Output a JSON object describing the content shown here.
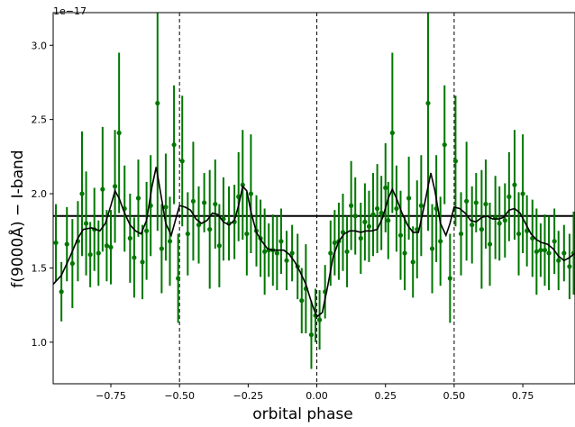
{
  "chart_data": {
    "type": "scatter",
    "title": "",
    "xlabel": "orbital phase",
    "ylabel": "f(9000Å) − I-band",
    "y_offset_label": "1e−17",
    "xlim": [
      -0.96,
      0.94
    ],
    "ylim": [
      0.72,
      3.22
    ],
    "x_ticks": [
      -0.75,
      -0.5,
      -0.25,
      0.0,
      0.25,
      0.5,
      0.75
    ],
    "x_tick_labels": [
      "−0.75",
      "−0.50",
      "−0.25",
      "0.00",
      "0.25",
      "0.50",
      "0.75"
    ],
    "y_ticks": [
      1.0,
      1.5,
      2.0,
      2.5,
      3.0
    ],
    "y_tick_labels": [
      "1.0",
      "1.5",
      "2.0",
      "2.5",
      "3.0"
    ],
    "grid": false,
    "reference_line_y": 1.85,
    "vertical_lines_x": [
      -0.5,
      0.0,
      0.5
    ],
    "colors": {
      "points": "#007700",
      "smooth": "#000000",
      "reference": "#000000"
    },
    "series": [
      {
        "kind": "points_with_errorbars",
        "points": [
          [
            -0.95,
            1.67,
            0.26
          ],
          [
            -0.93,
            1.34,
            0.2
          ],
          [
            -0.91,
            1.66,
            0.25
          ],
          [
            -0.89,
            1.53,
            0.3
          ],
          [
            -0.87,
            1.68,
            0.27
          ],
          [
            -0.855,
            2.0,
            0.42
          ],
          [
            -0.84,
            1.8,
            0.35
          ],
          [
            -0.825,
            1.59,
            0.22
          ],
          [
            -0.81,
            1.76,
            0.28
          ],
          [
            -0.795,
            1.6,
            0.22
          ],
          [
            -0.78,
            2.03,
            0.42
          ],
          [
            -0.765,
            1.65,
            0.24
          ],
          [
            -0.75,
            1.64,
            0.25
          ],
          [
            -0.735,
            2.05,
            0.38
          ],
          [
            -0.72,
            2.41,
            0.54
          ],
          [
            -0.7,
            1.9,
            0.29
          ],
          [
            -0.68,
            1.7,
            0.3
          ],
          [
            -0.665,
            1.57,
            0.27
          ],
          [
            -0.65,
            1.97,
            0.26
          ],
          [
            -0.635,
            1.54,
            0.25
          ],
          [
            -0.62,
            1.75,
            0.33
          ],
          [
            -0.605,
            1.92,
            0.34
          ],
          [
            -0.58,
            2.61,
            0.86
          ],
          [
            -0.565,
            1.63,
            0.3
          ],
          [
            -0.55,
            1.91,
            0.36
          ],
          [
            -0.535,
            1.68,
            0.3
          ],
          [
            -0.52,
            2.33,
            0.4
          ],
          [
            -0.505,
            1.43,
            0.3
          ],
          [
            -0.49,
            2.22,
            0.44
          ],
          [
            -0.47,
            1.73,
            0.28
          ],
          [
            -0.45,
            1.95,
            0.4
          ],
          [
            -0.43,
            1.79,
            0.26
          ],
          [
            -0.41,
            1.94,
            0.2
          ],
          [
            -0.39,
            1.76,
            0.4
          ],
          [
            -0.37,
            1.93,
            0.3
          ],
          [
            -0.355,
            1.65,
            0.28
          ],
          [
            -0.34,
            1.83,
            0.28
          ],
          [
            -0.32,
            1.8,
            0.25
          ],
          [
            -0.3,
            1.81,
            0.25
          ],
          [
            -0.285,
            1.98,
            0.3
          ],
          [
            -0.27,
            2.06,
            0.37
          ],
          [
            -0.255,
            1.73,
            0.28
          ],
          [
            -0.24,
            2.0,
            0.4
          ],
          [
            -0.22,
            1.75,
            0.24
          ],
          [
            -0.205,
            1.7,
            0.26
          ],
          [
            -0.19,
            1.61,
            0.29
          ],
          [
            -0.175,
            1.62,
            0.18
          ],
          [
            -0.16,
            1.62,
            0.24
          ],
          [
            -0.145,
            1.6,
            0.25
          ],
          [
            -0.13,
            1.68,
            0.22
          ],
          [
            -0.11,
            1.55,
            0.2
          ],
          [
            -0.09,
            1.6,
            0.19
          ],
          [
            -0.07,
            1.51,
            0.22
          ],
          [
            -0.055,
            1.28,
            0.22
          ],
          [
            -0.04,
            1.36,
            0.3
          ],
          [
            -0.02,
            1.05,
            0.23
          ],
          [
            -0.005,
            1.18,
            0.18
          ],
          [
            0.01,
            1.15,
            0.2
          ],
          [
            0.03,
            1.34,
            0.18
          ],
          [
            0.05,
            1.6,
            0.22
          ],
          [
            0.065,
            1.67,
            0.22
          ],
          [
            0.08,
            1.68,
            0.26
          ],
          [
            0.095,
            1.74,
            0.26
          ],
          [
            0.11,
            1.61,
            0.24
          ],
          [
            0.125,
            1.92,
            0.3
          ],
          [
            0.14,
            1.85,
            0.26
          ],
          [
            0.16,
            1.7,
            0.24
          ],
          [
            0.175,
            1.81,
            0.26
          ],
          [
            0.19,
            1.78,
            0.24
          ],
          [
            0.205,
            1.86,
            0.28
          ],
          [
            0.22,
            1.9,
            0.3
          ],
          [
            0.235,
            1.87,
            0.25
          ],
          [
            0.25,
            2.04,
            0.3
          ],
          [
            0.26,
            1.82,
            0.26
          ],
          [
            0.275,
            2.41,
            0.54
          ],
          [
            0.29,
            1.9,
            0.29
          ],
          [
            0.305,
            1.72,
            0.3
          ],
          [
            0.32,
            1.6,
            0.25
          ],
          [
            0.335,
            1.97,
            0.28
          ],
          [
            0.35,
            1.54,
            0.24
          ],
          [
            0.365,
            1.76,
            0.33
          ],
          [
            0.38,
            1.92,
            0.34
          ],
          [
            0.405,
            2.61,
            0.86
          ],
          [
            0.42,
            1.63,
            0.3
          ],
          [
            0.435,
            1.9,
            0.36
          ],
          [
            0.45,
            1.68,
            0.3
          ],
          [
            0.465,
            2.33,
            0.4
          ],
          [
            0.485,
            1.43,
            0.3
          ],
          [
            0.505,
            2.22,
            0.44
          ],
          [
            0.525,
            1.73,
            0.28
          ],
          [
            0.545,
            1.95,
            0.4
          ],
          [
            0.565,
            1.79,
            0.26
          ],
          [
            0.58,
            1.94,
            0.2
          ],
          [
            0.6,
            1.76,
            0.4
          ],
          [
            0.615,
            1.93,
            0.3
          ],
          [
            0.63,
            1.66,
            0.28
          ],
          [
            0.65,
            1.84,
            0.28
          ],
          [
            0.665,
            1.8,
            0.25
          ],
          [
            0.685,
            1.82,
            0.25
          ],
          [
            0.7,
            1.98,
            0.3
          ],
          [
            0.72,
            2.06,
            0.37
          ],
          [
            0.735,
            1.73,
            0.28
          ],
          [
            0.75,
            2.0,
            0.4
          ],
          [
            0.765,
            1.75,
            0.24
          ],
          [
            0.785,
            1.7,
            0.26
          ],
          [
            0.8,
            1.61,
            0.29
          ],
          [
            0.815,
            1.62,
            0.18
          ],
          [
            0.83,
            1.62,
            0.24
          ],
          [
            0.845,
            1.6,
            0.25
          ],
          [
            0.865,
            1.68,
            0.22
          ],
          [
            0.88,
            1.55,
            0.2
          ],
          [
            0.9,
            1.6,
            0.19
          ],
          [
            0.92,
            1.51,
            0.22
          ],
          [
            0.935,
            1.6,
            0.28
          ]
        ]
      },
      {
        "kind": "smoothed_curve",
        "points": [
          [
            -0.96,
            1.39
          ],
          [
            -0.93,
            1.45
          ],
          [
            -0.9,
            1.57
          ],
          [
            -0.87,
            1.7
          ],
          [
            -0.85,
            1.76
          ],
          [
            -0.82,
            1.77
          ],
          [
            -0.79,
            1.75
          ],
          [
            -0.77,
            1.8
          ],
          [
            -0.75,
            1.92
          ],
          [
            -0.735,
            2.02
          ],
          [
            -0.72,
            1.97
          ],
          [
            -0.7,
            1.87
          ],
          [
            -0.68,
            1.79
          ],
          [
            -0.66,
            1.75
          ],
          [
            -0.64,
            1.73
          ],
          [
            -0.62,
            1.82
          ],
          [
            -0.6,
            2.05
          ],
          [
            -0.585,
            2.18
          ],
          [
            -0.57,
            2.02
          ],
          [
            -0.55,
            1.8
          ],
          [
            -0.53,
            1.72
          ],
          [
            -0.515,
            1.82
          ],
          [
            -0.5,
            1.92
          ],
          [
            -0.48,
            1.91
          ],
          [
            -0.46,
            1.89
          ],
          [
            -0.44,
            1.83
          ],
          [
            -0.42,
            1.8
          ],
          [
            -0.4,
            1.82
          ],
          [
            -0.38,
            1.87
          ],
          [
            -0.36,
            1.86
          ],
          [
            -0.34,
            1.81
          ],
          [
            -0.32,
            1.79
          ],
          [
            -0.3,
            1.82
          ],
          [
            -0.285,
            1.92
          ],
          [
            -0.27,
            2.05
          ],
          [
            -0.255,
            2.02
          ],
          [
            -0.24,
            1.88
          ],
          [
            -0.22,
            1.74
          ],
          [
            -0.2,
            1.68
          ],
          [
            -0.18,
            1.63
          ],
          [
            -0.16,
            1.62
          ],
          [
            -0.14,
            1.62
          ],
          [
            -0.12,
            1.62
          ],
          [
            -0.1,
            1.59
          ],
          [
            -0.08,
            1.54
          ],
          [
            -0.06,
            1.47
          ],
          [
            -0.04,
            1.39
          ],
          [
            -0.02,
            1.27
          ],
          [
            0.0,
            1.17
          ],
          [
            0.02,
            1.2
          ],
          [
            0.04,
            1.38
          ],
          [
            0.06,
            1.58
          ],
          [
            0.08,
            1.68
          ],
          [
            0.1,
            1.73
          ],
          [
            0.12,
            1.75
          ],
          [
            0.14,
            1.75
          ],
          [
            0.16,
            1.74
          ],
          [
            0.18,
            1.75
          ],
          [
            0.2,
            1.75
          ],
          [
            0.22,
            1.76
          ],
          [
            0.24,
            1.84
          ],
          [
            0.26,
            1.97
          ],
          [
            0.275,
            2.03
          ],
          [
            0.29,
            1.97
          ],
          [
            0.31,
            1.87
          ],
          [
            0.33,
            1.79
          ],
          [
            0.35,
            1.74
          ],
          [
            0.37,
            1.74
          ],
          [
            0.39,
            1.91
          ],
          [
            0.415,
            2.14
          ],
          [
            0.43,
            2.02
          ],
          [
            0.45,
            1.8
          ],
          [
            0.47,
            1.72
          ],
          [
            0.485,
            1.8
          ],
          [
            0.5,
            1.91
          ],
          [
            0.52,
            1.9
          ],
          [
            0.54,
            1.87
          ],
          [
            0.56,
            1.82
          ],
          [
            0.58,
            1.81
          ],
          [
            0.6,
            1.84
          ],
          [
            0.62,
            1.85
          ],
          [
            0.64,
            1.83
          ],
          [
            0.66,
            1.83
          ],
          [
            0.68,
            1.84
          ],
          [
            0.7,
            1.89
          ],
          [
            0.72,
            1.9
          ],
          [
            0.74,
            1.87
          ],
          [
            0.76,
            1.8
          ],
          [
            0.78,
            1.73
          ],
          [
            0.8,
            1.69
          ],
          [
            0.82,
            1.67
          ],
          [
            0.84,
            1.66
          ],
          [
            0.86,
            1.63
          ],
          [
            0.88,
            1.58
          ],
          [
            0.9,
            1.55
          ],
          [
            0.92,
            1.57
          ],
          [
            0.94,
            1.6
          ]
        ]
      }
    ]
  }
}
